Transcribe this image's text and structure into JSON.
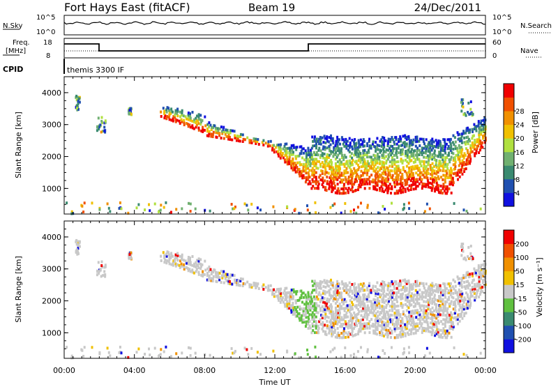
{
  "header": {
    "station": "Fort Hays East (fitACF)",
    "beam": "Beam 19",
    "date": "24/Dec/2011"
  },
  "top_panels": {
    "nsky_label": "N.Sky",
    "nsky_ticks": [
      "10^5",
      "10^0"
    ],
    "nsearch_label": "N.Search",
    "nsearch_ticks": [
      "10^5",
      "10^0"
    ],
    "freq_label_line1": "Freq.",
    "freq_label_line2": "[MHz]",
    "freq_ticks": [
      "18",
      "8"
    ],
    "nave_label": "Nave",
    "nave_ticks": [
      "60",
      "0"
    ],
    "cpid_label": "CPID",
    "cpid_value": "themis 3300 IF"
  },
  "chart_data": [
    {
      "type": "heatmap",
      "name": "power-panel",
      "ylabel": "Slant Range [km]",
      "xlabel": "Time UT",
      "x_ticks": [
        "00:00",
        "04:00",
        "08:00",
        "12:00",
        "16:00",
        "20:00",
        "00:00"
      ],
      "y_ticks": [
        1000,
        2000,
        3000,
        4000
      ],
      "ylim": [
        200,
        4500
      ],
      "xlim_hours": [
        0,
        24
      ],
      "colorbar": {
        "label": "Power [dB]",
        "ticks": [
          "4",
          "8",
          "12",
          "16",
          "20",
          "24",
          "28"
        ],
        "colors": [
          "#1010e0",
          "#2050b0",
          "#3a8a70",
          "#70b070",
          "#b0e040",
          "#f0c000",
          "#f09000",
          "#f05000",
          "#f00000"
        ]
      },
      "features": [
        {
          "time": [
            0.6,
            0.8
          ],
          "range": [
            3500,
            3950
          ],
          "level": "mid"
        },
        {
          "time": [
            1.8,
            2.3
          ],
          "range": [
            2800,
            3300
          ],
          "level": "low"
        },
        {
          "time": [
            5.5,
            9.0
          ],
          "range": [
            2900,
            3650
          ],
          "level": "low-mid"
        },
        {
          "time": [
            8.0,
            14.0
          ],
          "range": [
            1000,
            3100
          ],
          "level": "high"
        },
        {
          "time": [
            14.0,
            22.0
          ],
          "range": [
            900,
            2600
          ],
          "level": "high"
        },
        {
          "time": [
            22.0,
            24.0
          ],
          "range": [
            1800,
            3300
          ],
          "level": "mid"
        }
      ]
    },
    {
      "type": "heatmap",
      "name": "velocity-panel",
      "ylabel": "Slant Range [km]",
      "xlabel": "Time UT",
      "x_ticks": [
        "00:00",
        "04:00",
        "08:00",
        "12:00",
        "16:00",
        "20:00",
        "00:00"
      ],
      "y_ticks": [
        1000,
        2000,
        3000,
        4000
      ],
      "ylim": [
        200,
        4500
      ],
      "xlim_hours": [
        0,
        24
      ],
      "colorbar": {
        "label": "Velocity [m s⁻¹]",
        "ticks": [
          "200",
          "100",
          "50",
          "15",
          "-15",
          "-50",
          "-100",
          "-200"
        ],
        "colors": [
          "#1010e0",
          "#2050b0",
          "#3a8a70",
          "#60c040",
          "#c8c8c8",
          "#f0c000",
          "#f09000",
          "#f05000",
          "#f00000"
        ]
      }
    }
  ]
}
